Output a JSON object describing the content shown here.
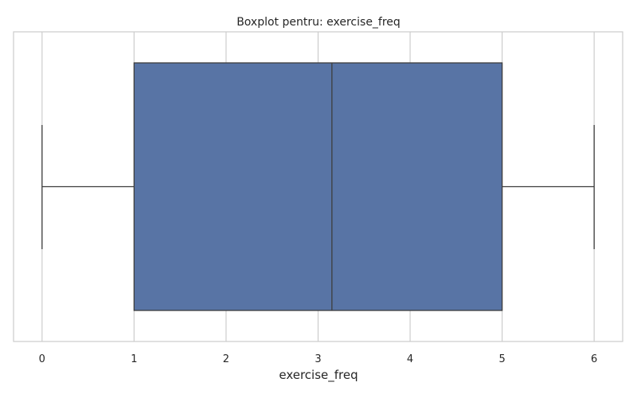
{
  "chart_data": {
    "type": "boxplot",
    "title": "Boxplot pentru: exercise_freq",
    "xlabel": "exercise_freq",
    "ylabel": "",
    "orientation": "horizontal",
    "xlim": [
      -0.31,
      6.31
    ],
    "x_ticks": [
      0,
      1,
      2,
      3,
      4,
      5,
      6
    ],
    "grid": "vertical",
    "box": {
      "whisker_low": 0,
      "q1": 1,
      "median": 3.15,
      "q3": 5,
      "whisker_high": 6
    },
    "colors": {
      "box_fill": "#5874a5",
      "line": "#3d3d3d",
      "grid": "#cccccc",
      "frame": "#cccccc"
    }
  }
}
